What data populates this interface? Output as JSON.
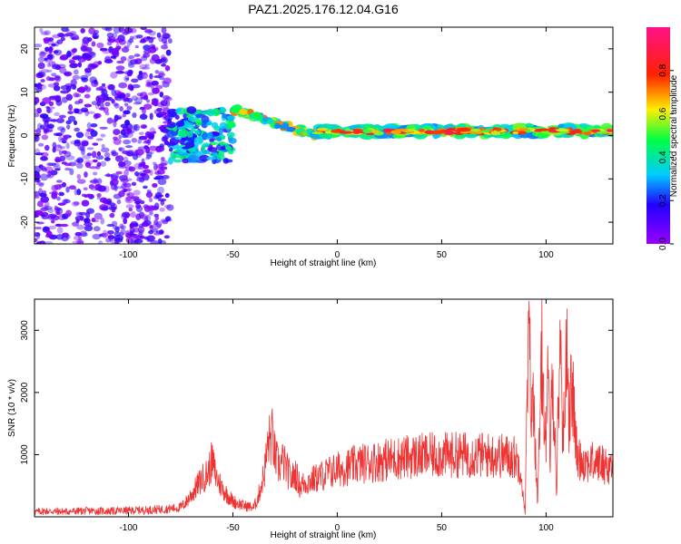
{
  "title": "PAZ1.2025.176.12.04.G16",
  "colors": {
    "signal": "#ee3333",
    "axis": "#000000"
  },
  "chart_data": [
    {
      "type": "heatmap",
      "name": "spectrogram",
      "xlabel": "Height of straight line (km)",
      "ylabel": "Frequency (Hz)",
      "xlim": [
        -145,
        132
      ],
      "ylim": [
        -25,
        25
      ],
      "xticks": [
        -100,
        -50,
        0,
        50,
        100
      ],
      "yticks": [
        -20,
        -10,
        0,
        10,
        20
      ],
      "colorbar": {
        "label": "Normalized spectral amplitude",
        "range": [
          0.0,
          1.0
        ],
        "ticks": [
          "0.0",
          "0.2",
          "0.4",
          "0.6",
          "0.8"
        ],
        "colormap": "rainbow (purple-blue-cyan-green-yellow-red-magenta)"
      },
      "features": [
        {
          "description": "scattered low-amplitude noise",
          "x_range": [
            -145,
            -80
          ],
          "freq_range": [
            -25,
            25
          ],
          "amplitude": 0.1
        },
        {
          "description": "blob cluster",
          "x_range": [
            -80,
            -50
          ],
          "freq_range": [
            -6,
            6
          ],
          "amplitude": 0.3
        },
        {
          "description": "spectral line descending",
          "x_range": [
            -50,
            -10
          ],
          "freq_range": [
            0,
            6
          ],
          "amplitude": 0.5
        },
        {
          "description": "main spectral line",
          "x_range": [
            -10,
            132
          ],
          "freq_range": [
            0,
            2
          ],
          "amplitude": 0.9
        }
      ]
    },
    {
      "type": "line",
      "name": "snr",
      "xlabel": "Height of straight line (km)",
      "ylabel": "SNR (10 * v/v)",
      "xlim": [
        -145,
        132
      ],
      "ylim": [
        0,
        3500
      ],
      "xticks": [
        -100,
        -50,
        0,
        50,
        100
      ],
      "yticks": [
        1000,
        2000,
        3000
      ],
      "series": [
        {
          "color": "#ee3333",
          "points": [
            [
              -145,
              80
            ],
            [
              -140,
              90
            ],
            [
              -130,
              85
            ],
            [
              -120,
              95
            ],
            [
              -110,
              90
            ],
            [
              -100,
              100
            ],
            [
              -90,
              110
            ],
            [
              -80,
              130
            ],
            [
              -75,
              150
            ],
            [
              -72,
              250
            ],
            [
              -68,
              450
            ],
            [
              -65,
              600
            ],
            [
              -62,
              700
            ],
            [
              -60,
              900
            ],
            [
              -58,
              650
            ],
            [
              -55,
              450
            ],
            [
              -50,
              250
            ],
            [
              -45,
              180
            ],
            [
              -40,
              150
            ],
            [
              -38,
              300
            ],
            [
              -35,
              700
            ],
            [
              -33,
              1200
            ],
            [
              -31,
              1300
            ],
            [
              -30,
              1000
            ],
            [
              -28,
              800
            ],
            [
              -26,
              900
            ],
            [
              -24,
              750
            ],
            [
              -22,
              600
            ],
            [
              -20,
              700
            ],
            [
              -18,
              500
            ],
            [
              -15,
              550
            ],
            [
              -10,
              620
            ],
            [
              -5,
              700
            ],
            [
              0,
              760
            ],
            [
              5,
              800
            ],
            [
              10,
              850
            ],
            [
              20,
              900
            ],
            [
              30,
              950
            ],
            [
              40,
              980
            ],
            [
              50,
              990
            ],
            [
              60,
              1000
            ],
            [
              70,
              990
            ],
            [
              80,
              980
            ],
            [
              85,
              960
            ],
            [
              88,
              800
            ],
            [
              89,
              300
            ],
            [
              90,
              100
            ],
            [
              91,
              2000
            ],
            [
              92,
              3000
            ],
            [
              93,
              1500
            ],
            [
              94,
              2000
            ],
            [
              95,
              1000
            ],
            [
              96,
              200
            ],
            [
              97,
              1500
            ],
            [
              98,
              2600
            ],
            [
              99,
              1800
            ],
            [
              100,
              1200
            ],
            [
              101,
              2200
            ],
            [
              102,
              900
            ],
            [
              103,
              2400
            ],
            [
              104,
              1500
            ],
            [
              105,
              400
            ],
            [
              106,
              2000
            ],
            [
              107,
              3000
            ],
            [
              108,
              1200
            ],
            [
              109,
              1800
            ],
            [
              110,
              3100
            ],
            [
              111,
              1600
            ],
            [
              112,
              2000
            ],
            [
              113,
              1900
            ],
            [
              114,
              1300
            ],
            [
              115,
              950
            ],
            [
              120,
              880
            ],
            [
              125,
              870
            ],
            [
              130,
              820
            ],
            [
              132,
              800
            ]
          ]
        }
      ]
    }
  ]
}
